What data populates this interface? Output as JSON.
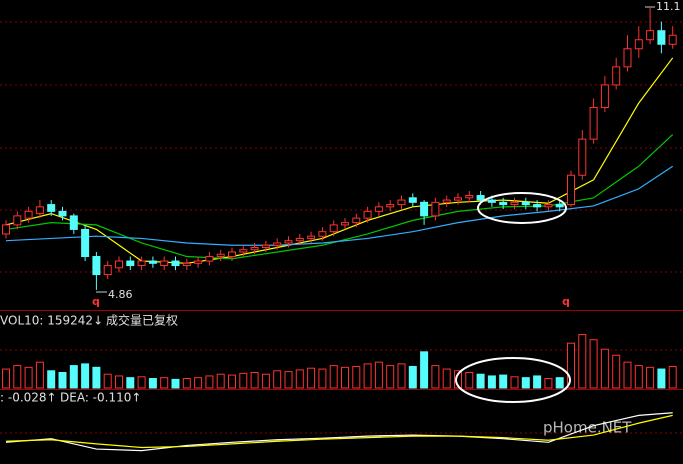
{
  "chart_data": [
    {
      "type": "candlestick",
      "ylim": [
        4.46,
        11.28
      ],
      "up_color": "#ff3232",
      "down_color": "#54fcfc",
      "open": [
        6.1,
        6.3,
        6.45,
        6.55,
        6.75,
        6.6,
        6.5,
        6.2,
        5.6,
        5.2,
        5.35,
        5.5,
        5.4,
        5.5,
        5.4,
        5.5,
        5.4,
        5.45,
        5.5,
        5.6,
        5.6,
        5.7,
        5.75,
        5.8,
        5.85,
        5.9,
        5.95,
        6.0,
        6.05,
        6.15,
        6.3,
        6.35,
        6.45,
        6.6,
        6.7,
        6.75,
        6.9,
        6.8,
        6.5,
        6.8,
        6.85,
        6.9,
        6.95,
        6.85,
        6.8,
        6.75,
        6.8,
        6.75,
        6.7,
        6.75,
        6.75,
        7.4,
        8.2,
        8.9,
        9.4,
        9.8,
        10.2,
        10.4,
        10.6,
        10.3
      ],
      "high": [
        6.4,
        6.6,
        6.7,
        6.85,
        6.85,
        6.7,
        6.55,
        6.3,
        5.7,
        5.5,
        5.6,
        5.6,
        5.6,
        5.6,
        5.6,
        5.6,
        5.55,
        5.6,
        5.7,
        5.75,
        5.8,
        5.85,
        5.9,
        5.95,
        6.0,
        6.05,
        6.1,
        6.15,
        6.25,
        6.4,
        6.45,
        6.55,
        6.7,
        6.8,
        6.85,
        6.95,
        7.0,
        6.85,
        6.9,
        6.95,
        7.0,
        7.05,
        7.05,
        6.95,
        6.9,
        6.9,
        6.9,
        6.85,
        6.85,
        6.85,
        7.5,
        8.4,
        9.1,
        9.6,
        10.0,
        10.5,
        10.7,
        11.1,
        10.8,
        10.7
      ],
      "low": [
        6.0,
        6.2,
        6.35,
        6.45,
        6.5,
        6.4,
        6.1,
        5.5,
        4.86,
        5.1,
        5.25,
        5.3,
        5.3,
        5.35,
        5.3,
        5.3,
        5.3,
        5.35,
        5.4,
        5.5,
        5.5,
        5.6,
        5.65,
        5.7,
        5.75,
        5.8,
        5.85,
        5.9,
        5.95,
        6.05,
        6.2,
        6.25,
        6.35,
        6.5,
        6.6,
        6.65,
        6.7,
        6.3,
        6.4,
        6.7,
        6.75,
        6.8,
        6.75,
        6.7,
        6.65,
        6.65,
        6.65,
        6.6,
        6.6,
        6.6,
        6.7,
        7.3,
        8.1,
        8.8,
        9.3,
        9.7,
        10.0,
        10.3,
        10.1,
        10.2
      ],
      "close": [
        6.3,
        6.5,
        6.6,
        6.7,
        6.6,
        6.5,
        6.2,
        5.6,
        5.2,
        5.4,
        5.5,
        5.4,
        5.5,
        5.45,
        5.5,
        5.4,
        5.45,
        5.5,
        5.6,
        5.65,
        5.7,
        5.75,
        5.8,
        5.85,
        5.9,
        5.95,
        6.0,
        6.05,
        6.15,
        6.3,
        6.35,
        6.45,
        6.6,
        6.7,
        6.75,
        6.85,
        6.8,
        6.5,
        6.8,
        6.85,
        6.9,
        6.95,
        6.85,
        6.8,
        6.75,
        6.8,
        6.75,
        6.7,
        6.75,
        6.7,
        7.4,
        8.2,
        8.9,
        9.4,
        9.8,
        10.2,
        10.4,
        10.6,
        10.3,
        10.5
      ],
      "ma_x": [
        0,
        4,
        8,
        12,
        16,
        20,
        24,
        28,
        32,
        36,
        40,
        44,
        48,
        52,
        56,
        59
      ],
      "series": [
        {
          "color": "#ffff00",
          "values": [
            6.3,
            6.55,
            6.2,
            5.5,
            5.45,
            5.6,
            5.8,
            6.0,
            6.4,
            6.7,
            6.8,
            6.85,
            6.78,
            7.3,
            9.0,
            10.0
          ]
        },
        {
          "color": "#00c800",
          "values": [
            6.2,
            6.35,
            6.3,
            5.9,
            5.6,
            5.55,
            5.7,
            5.85,
            6.1,
            6.4,
            6.6,
            6.7,
            6.72,
            6.9,
            7.6,
            8.3
          ]
        },
        {
          "color": "#30b0ff",
          "values": [
            5.95,
            6.0,
            6.05,
            6.0,
            5.9,
            5.85,
            5.85,
            5.9,
            6.0,
            6.15,
            6.35,
            6.5,
            6.6,
            6.72,
            7.1,
            7.6
          ]
        }
      ],
      "annotations": [
        "11.1",
        "4.86",
        "q",
        "q"
      ]
    },
    {
      "type": "bar",
      "title": "VOL10: 159242↓",
      "subtitle": "成交量已复权",
      "ylim": [
        0,
        650000
      ],
      "values": [
        220000,
        260000,
        240000,
        300000,
        200000,
        180000,
        260000,
        280000,
        240000,
        160000,
        140000,
        120000,
        130000,
        110000,
        120000,
        100000,
        110000,
        120000,
        140000,
        160000,
        150000,
        170000,
        180000,
        160000,
        200000,
        190000,
        210000,
        230000,
        220000,
        260000,
        240000,
        250000,
        280000,
        300000,
        260000,
        280000,
        250000,
        420000,
        260000,
        220000,
        200000,
        180000,
        160000,
        140000,
        150000,
        130000,
        120000,
        140000,
        110000,
        120000,
        520000,
        620000,
        560000,
        450000,
        380000,
        300000,
        260000,
        240000,
        220000,
        250000
      ]
    },
    {
      "type": "line",
      "title": ": -0.028↑",
      "subtitle": "DEA: -0.110↑",
      "watermark": "pHome.NET",
      "ylim": [
        -0.4,
        0.7
      ],
      "x": [
        0,
        4,
        8,
        12,
        16,
        20,
        24,
        28,
        32,
        36,
        40,
        44,
        48,
        52,
        56,
        59
      ],
      "series": [
        {
          "color": "#ffffff",
          "values": [
            -0.02,
            0.05,
            -0.15,
            -0.18,
            -0.08,
            -0.02,
            0.03,
            0.06,
            0.1,
            0.12,
            0.1,
            0.05,
            -0.02,
            0.3,
            0.5,
            0.55
          ]
        },
        {
          "color": "#ffff00",
          "values": [
            0.0,
            0.03,
            -0.05,
            -0.12,
            -0.1,
            -0.05,
            0.0,
            0.04,
            0.07,
            0.1,
            0.1,
            0.07,
            0.02,
            0.12,
            0.35,
            0.5
          ]
        }
      ]
    }
  ]
}
